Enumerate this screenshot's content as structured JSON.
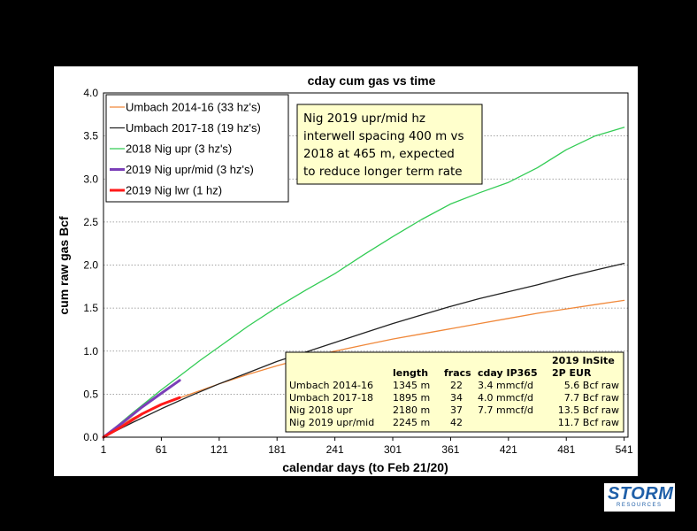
{
  "chart_data": {
    "type": "line",
    "title": "cday cum gas vs time",
    "xlabel": "calendar days (to Feb 21/20)",
    "ylabel": "cum raw gas Bcf",
    "xlim": [
      1,
      545
    ],
    "ylim": [
      0,
      4.0
    ],
    "xticks": [
      1,
      61,
      121,
      181,
      241,
      301,
      361,
      421,
      481,
      541
    ],
    "yticks": [
      0.0,
      0.5,
      1.0,
      1.5,
      2.0,
      2.5,
      3.0,
      3.5,
      4.0
    ],
    "grid": "horizontal dotted",
    "legend_position": "top-left",
    "series": [
      {
        "name": "Umbach 2014-16 (33 hz's)",
        "color": "#f0883a",
        "width": 1.3,
        "x": [
          1,
          31,
          61,
          91,
          121,
          151,
          181,
          211,
          241,
          271,
          301,
          331,
          361,
          391,
          421,
          451,
          481,
          511,
          541
        ],
        "y": [
          0,
          0.22,
          0.38,
          0.5,
          0.62,
          0.73,
          0.83,
          0.92,
          1.0,
          1.07,
          1.14,
          1.2,
          1.26,
          1.32,
          1.38,
          1.44,
          1.49,
          1.54,
          1.59
        ]
      },
      {
        "name": "Umbach 2017-18 (19 hz's)",
        "color": "#222222",
        "width": 1.3,
        "x": [
          1,
          31,
          61,
          91,
          121,
          151,
          181,
          211,
          241,
          271,
          301,
          331,
          361,
          391,
          421,
          451,
          481,
          511,
          541
        ],
        "y": [
          0,
          0.17,
          0.33,
          0.48,
          0.62,
          0.75,
          0.88,
          0.99,
          1.1,
          1.21,
          1.32,
          1.42,
          1.52,
          1.61,
          1.69,
          1.77,
          1.86,
          1.94,
          2.02
        ]
      },
      {
        "name": "2018 Nig upr (3 hz's)",
        "color": "#33cc55",
        "width": 1.3,
        "x": [
          1,
          31,
          61,
          81,
          101,
          121,
          151,
          181,
          211,
          241,
          271,
          301,
          331,
          361,
          391,
          421,
          451,
          481,
          511,
          541
        ],
        "y": [
          0,
          0.28,
          0.55,
          0.72,
          0.89,
          1.05,
          1.29,
          1.51,
          1.71,
          1.9,
          2.12,
          2.33,
          2.53,
          2.71,
          2.84,
          2.96,
          3.13,
          3.34,
          3.5,
          3.6
        ]
      },
      {
        "name": "2019 Nig upr/mid (3 hz's)",
        "color": "#7b3fb8",
        "width": 3,
        "x": [
          1,
          21,
          41,
          61,
          80
        ],
        "y": [
          0,
          0.17,
          0.35,
          0.51,
          0.66
        ]
      },
      {
        "name": "2019 Nig lwr (1 hz)",
        "color": "#ff1a1a",
        "width": 3,
        "x": [
          1,
          21,
          41,
          61,
          80
        ],
        "y": [
          0,
          0.13,
          0.27,
          0.38,
          0.46
        ]
      }
    ],
    "annotation": {
      "lines": [
        "Nig 2019 upr/mid hz",
        "interwell spacing 400 m vs",
        "2018 at 465 m, expected",
        "to reduce longer term rate"
      ]
    },
    "table": {
      "header_top": "2019 InSite",
      "headers": [
        "",
        "length",
        "fracs",
        "cday IP365",
        "2P EUR"
      ],
      "rows": [
        [
          "Umbach 2014-16",
          "1345 m",
          "22",
          "3.4 mmcf/d",
          "5.6 Bcf raw"
        ],
        [
          "Umbach 2017-18",
          "1895 m",
          "34",
          "4.0 mmcf/d",
          "7.7 Bcf raw"
        ],
        [
          "Nig 2018 upr",
          "2180 m",
          "37",
          "7.7 mmcf/d",
          "13.5 Bcf raw"
        ],
        [
          "Nig 2019 upr/mid",
          "2245 m",
          "42",
          "",
          "11.7 Bcf raw"
        ]
      ]
    }
  },
  "logo": {
    "name": "STORM",
    "sub": "RESOURCES"
  }
}
